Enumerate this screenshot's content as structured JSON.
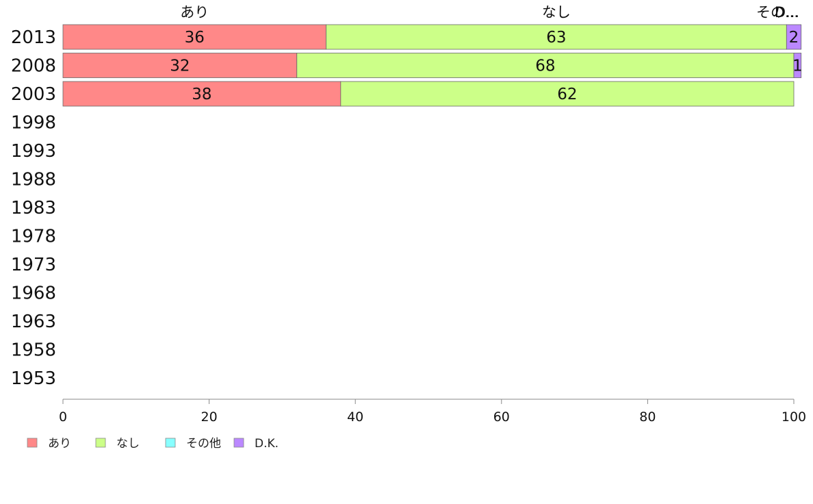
{
  "chart_data": {
    "type": "bar",
    "orientation": "horizontal",
    "stacked": true,
    "categories": [
      "2013",
      "2008",
      "2003",
      "1998",
      "1993",
      "1988",
      "1983",
      "1978",
      "1973",
      "1968",
      "1963",
      "1958",
      "1953"
    ],
    "series": [
      {
        "name": "あり",
        "color": "#ff8888",
        "values": [
          36,
          32,
          38,
          null,
          null,
          null,
          null,
          null,
          null,
          null,
          null,
          null,
          null
        ]
      },
      {
        "name": "なし",
        "color": "#ccff88",
        "values": [
          63,
          68,
          62,
          null,
          null,
          null,
          null,
          null,
          null,
          null,
          null,
          null,
          null
        ]
      },
      {
        "name": "その他",
        "color": "#88ffff",
        "values": [
          0,
          0,
          0,
          null,
          null,
          null,
          null,
          null,
          null,
          null,
          null,
          null,
          null
        ]
      },
      {
        "name": "D.K.",
        "color": "#bb88ff",
        "values": [
          2,
          1,
          0,
          null,
          null,
          null,
          null,
          null,
          null,
          null,
          null,
          null,
          null
        ]
      }
    ],
    "top_labels": [
      "あり",
      "なし",
      "その...",
      "D..."
    ],
    "xlim": [
      0,
      100
    ],
    "xticks": [
      0,
      20,
      40,
      60,
      80,
      100
    ],
    "grid": false,
    "legend_position": "bottom-left"
  }
}
